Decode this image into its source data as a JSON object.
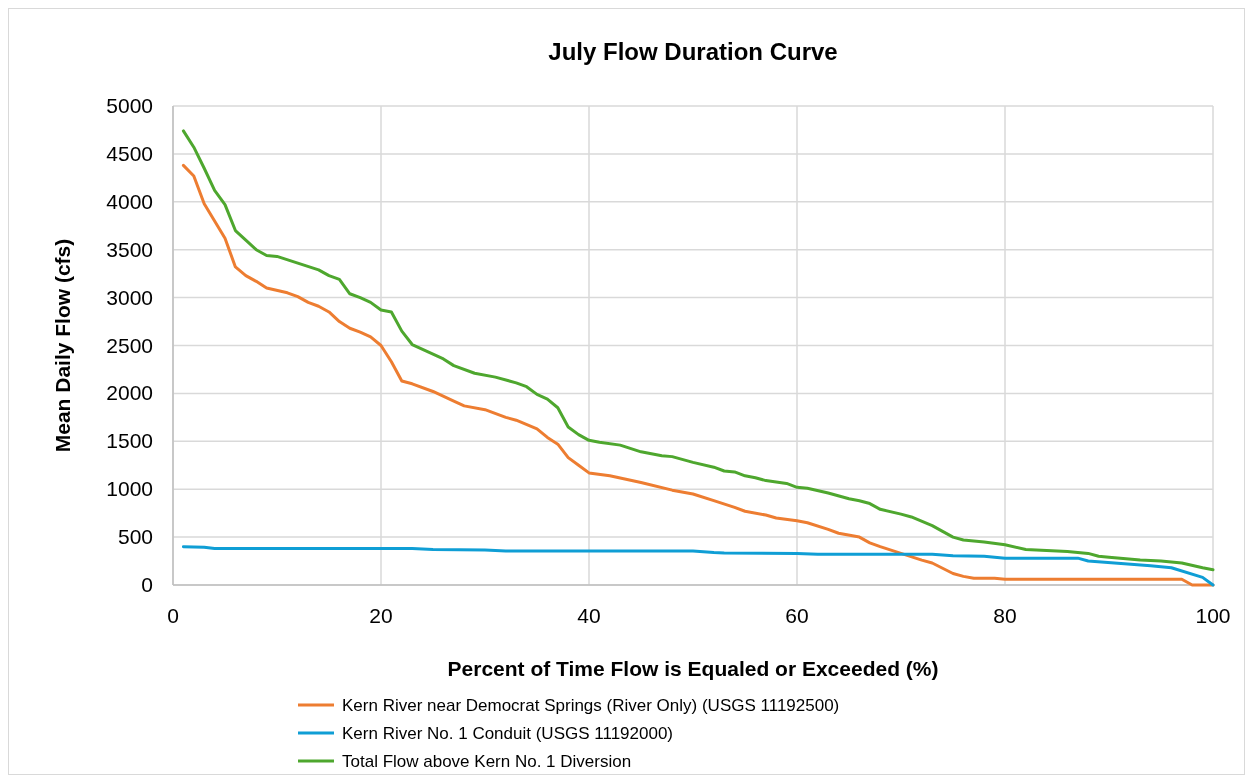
{
  "chart_data": {
    "type": "line",
    "title": "July Flow Duration Curve",
    "xlabel": "Percent of Time Flow is Equaled or Exceeded (%)",
    "ylabel": "Mean Daily Flow (cfs)",
    "xlim": [
      0,
      100
    ],
    "xticks": [
      0,
      20,
      40,
      60,
      80,
      100
    ],
    "ylim": [
      0,
      5000
    ],
    "yticks": [
      0,
      500,
      1000,
      1500,
      2000,
      2500,
      3000,
      3500,
      4000,
      4500,
      5000
    ],
    "grid": true,
    "legend": "bottom",
    "marker": "none",
    "line_style": "solid",
    "series": [
      {
        "name": "Kern River near Democrat Springs (River Only) (USGS 11192500)",
        "color": "#ed7d31",
        "x": [
          1,
          2,
          3,
          4,
          5,
          6,
          7,
          8,
          9,
          11,
          12,
          13,
          14,
          15,
          16,
          17,
          18,
          19,
          20,
          21,
          22,
          23,
          25,
          27,
          28,
          30,
          32,
          33,
          35,
          36,
          37,
          38,
          39,
          40,
          42,
          45,
          48,
          50,
          52,
          54,
          55,
          57,
          58,
          60,
          61,
          63,
          64,
          66,
          67,
          68,
          70,
          72,
          73,
          75,
          76,
          77,
          79,
          80,
          97,
          98,
          100
        ],
        "values": [
          4380,
          4270,
          3980,
          3800,
          3620,
          3320,
          3230,
          3170,
          3100,
          3050,
          3010,
          2950,
          2910,
          2850,
          2750,
          2680,
          2640,
          2590,
          2500,
          2330,
          2130,
          2100,
          2020,
          1920,
          1870,
          1830,
          1750,
          1720,
          1630,
          1540,
          1470,
          1330,
          1250,
          1170,
          1140,
          1070,
          990,
          950,
          880,
          810,
          770,
          730,
          700,
          670,
          650,
          580,
          540,
          500,
          440,
          400,
          330,
          260,
          230,
          120,
          90,
          70,
          70,
          60,
          60,
          0,
          0
        ]
      },
      {
        "name": "Kern River No. 1 Conduit (USGS 11192000)",
        "color": "#0f9ed5",
        "x": [
          1,
          3,
          4,
          23,
          25,
          30,
          32,
          50,
          52,
          53,
          60,
          62,
          73,
          75,
          78,
          80,
          87,
          88,
          94,
          96,
          99,
          100
        ],
        "values": [
          400,
          395,
          380,
          380,
          370,
          365,
          355,
          355,
          340,
          335,
          330,
          320,
          320,
          305,
          300,
          280,
          280,
          250,
          200,
          180,
          80,
          0
        ]
      },
      {
        "name": "Total Flow above Kern No. 1 Diversion",
        "color": "#4ea72e",
        "x": [
          1,
          2,
          3,
          4,
          5,
          6,
          7,
          8,
          9,
          10,
          12,
          14,
          15,
          16,
          17,
          18,
          19,
          20,
          21,
          22,
          23,
          25,
          26,
          27,
          29,
          31,
          33,
          34,
          35,
          36,
          37,
          38,
          39,
          40,
          41,
          43,
          45,
          47,
          48,
          50,
          52,
          53,
          54,
          55,
          56,
          57,
          59,
          60,
          61,
          63,
          65,
          66,
          67,
          68,
          70,
          71,
          73,
          74,
          75,
          76,
          78,
          80,
          82,
          86,
          88,
          89,
          90,
          93,
          95,
          97,
          99,
          100
        ],
        "values": [
          4740,
          4570,
          4350,
          4120,
          3970,
          3700,
          3600,
          3500,
          3440,
          3430,
          3360,
          3290,
          3230,
          3190,
          3040,
          3000,
          2950,
          2870,
          2850,
          2650,
          2510,
          2410,
          2360,
          2290,
          2210,
          2170,
          2110,
          2070,
          1990,
          1940,
          1850,
          1650,
          1570,
          1510,
          1490,
          1460,
          1390,
          1350,
          1340,
          1280,
          1230,
          1190,
          1180,
          1140,
          1120,
          1090,
          1060,
          1020,
          1010,
          960,
          900,
          880,
          850,
          790,
          740,
          710,
          620,
          560,
          500,
          470,
          450,
          420,
          370,
          350,
          330,
          300,
          290,
          260,
          250,
          230,
          180,
          160
        ]
      }
    ]
  }
}
